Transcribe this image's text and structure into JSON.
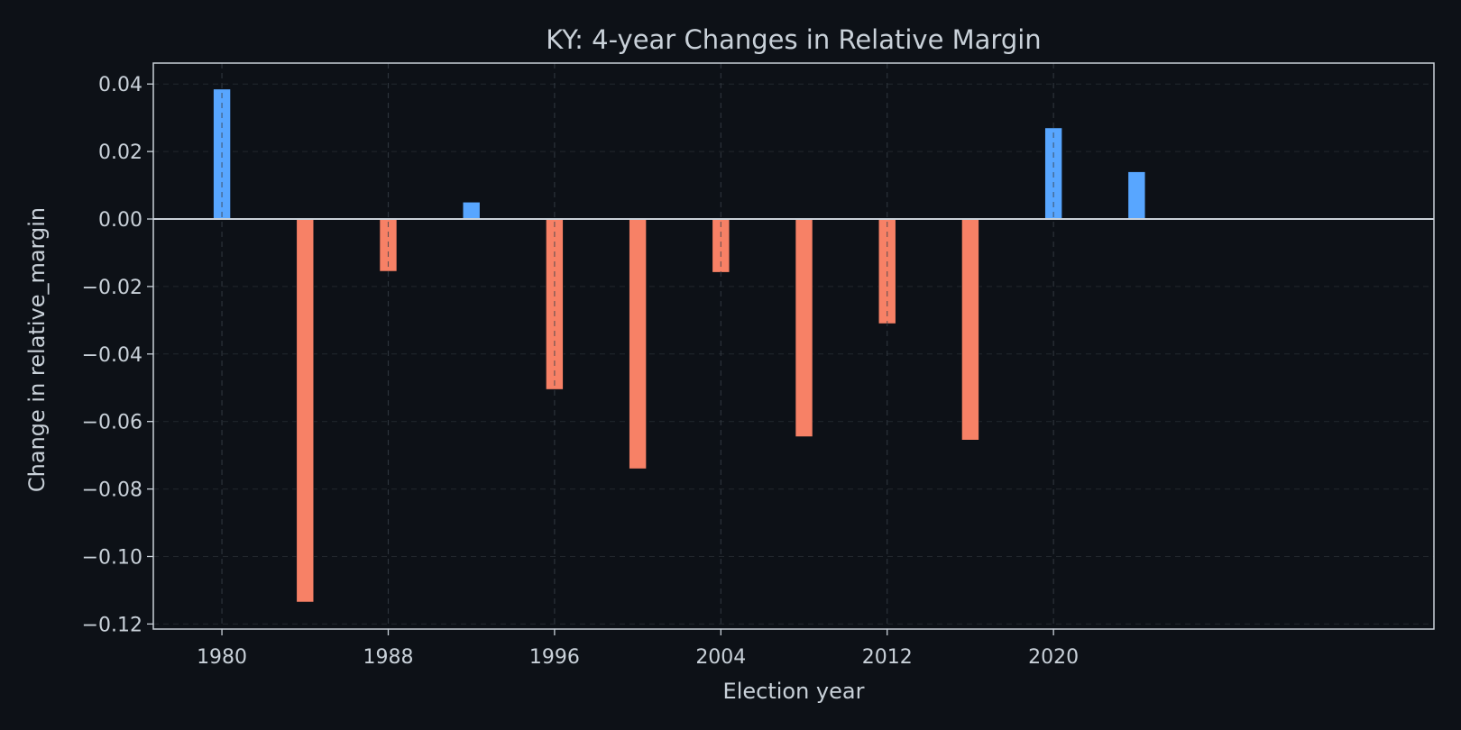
{
  "chart_data": {
    "type": "bar",
    "title": "KY: 4-year Changes in Relative Margin",
    "xlabel": "Election year",
    "ylabel": "Change in relative_margin",
    "x": [
      1980,
      1984,
      1988,
      1992,
      1996,
      2000,
      2004,
      2008,
      2012,
      2016,
      2020,
      2024
    ],
    "values": [
      0.0385,
      -0.1135,
      -0.0155,
      0.005,
      -0.0505,
      -0.074,
      -0.0158,
      -0.0645,
      -0.031,
      -0.0655,
      0.027,
      0.014
    ],
    "x_ticks": [
      1980,
      1988,
      1996,
      2004,
      2012,
      2020
    ],
    "x_tick_labels": [
      "1980",
      "1988",
      "1996",
      "2004",
      "2012",
      "2020"
    ],
    "y_ticks": [
      0.04,
      0.02,
      0.0,
      -0.02,
      -0.04,
      -0.06,
      -0.08,
      -0.1,
      -0.12
    ],
    "y_tick_labels": [
      "0.04",
      "0.02",
      "0.00",
      "−0.02",
      "−0.04",
      "−0.06",
      "−0.08",
      "−0.10",
      "−0.12"
    ],
    "xlim": [
      1976.7,
      2038.3
    ],
    "ylim": [
      -0.1215,
      0.0462
    ],
    "grid": true,
    "colors": {
      "background": "#0d1117",
      "positive": "#58a6ff",
      "negative": "#f78166",
      "text": "#c9d1d9",
      "axes": "#c9d1d9",
      "grid": "#30363d",
      "zero_line": "#c9d1d9"
    }
  }
}
